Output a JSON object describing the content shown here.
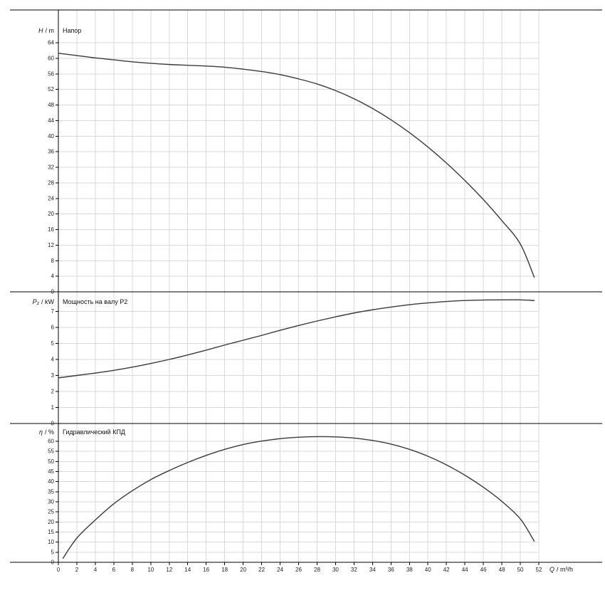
{
  "colors": {
    "background": "#ffffff",
    "grid": "#d9d9d9",
    "axis": "#000000",
    "curve": "#3a3a3a",
    "text": "#111111"
  },
  "layout_hints": {
    "grid": true,
    "stacked_panels": 3,
    "legend": "none"
  },
  "x_axis": {
    "var": "Q",
    "unit": "/ m³/h",
    "min": 0,
    "max": 52,
    "tick_step": 2,
    "ticks": [
      0,
      2,
      4,
      6,
      8,
      10,
      12,
      14,
      16,
      18,
      20,
      22,
      24,
      26,
      28,
      30,
      32,
      34,
      36,
      38,
      40,
      42,
      44,
      46,
      48,
      50,
      52
    ]
  },
  "chart_data": [
    {
      "type": "line",
      "title": "Напор",
      "y_axis": {
        "var": "H",
        "unit": "/ m",
        "min": 0,
        "max": 64,
        "tick_step": 4,
        "ticks": [
          0,
          4,
          8,
          12,
          16,
          20,
          24,
          28,
          32,
          36,
          40,
          44,
          48,
          52,
          56,
          60,
          64
        ]
      },
      "points": [
        [
          0,
          61.3
        ],
        [
          2,
          60.7
        ],
        [
          4,
          60.1
        ],
        [
          6,
          59.6
        ],
        [
          8,
          59.1
        ],
        [
          10,
          58.7
        ],
        [
          12,
          58.4
        ],
        [
          14,
          58.2
        ],
        [
          16,
          58.0
        ],
        [
          18,
          57.7
        ],
        [
          20,
          57.2
        ],
        [
          22,
          56.6
        ],
        [
          24,
          55.8
        ],
        [
          26,
          54.7
        ],
        [
          28,
          53.4
        ],
        [
          30,
          51.7
        ],
        [
          32,
          49.6
        ],
        [
          34,
          47.1
        ],
        [
          36,
          44.2
        ],
        [
          38,
          40.9
        ],
        [
          40,
          37.2
        ],
        [
          42,
          33.1
        ],
        [
          44,
          28.6
        ],
        [
          46,
          23.7
        ],
        [
          48,
          18.3
        ],
        [
          50,
          12.3
        ],
        [
          51.5,
          3.8
        ]
      ]
    },
    {
      "type": "line",
      "title": "Мощность на валу P2",
      "y_axis": {
        "var": "P₂",
        "unit": "/ kW",
        "min": 0,
        "max": 7,
        "tick_step": 1,
        "ticks": [
          0,
          1,
          2,
          3,
          4,
          5,
          6,
          7
        ]
      },
      "points": [
        [
          0,
          2.85
        ],
        [
          2,
          3.0
        ],
        [
          4,
          3.15
        ],
        [
          6,
          3.32
        ],
        [
          8,
          3.52
        ],
        [
          10,
          3.75
        ],
        [
          12,
          4.0
        ],
        [
          14,
          4.28
        ],
        [
          16,
          4.58
        ],
        [
          18,
          4.9
        ],
        [
          20,
          5.2
        ],
        [
          22,
          5.5
        ],
        [
          24,
          5.82
        ],
        [
          26,
          6.12
        ],
        [
          28,
          6.4
        ],
        [
          30,
          6.66
        ],
        [
          32,
          6.9
        ],
        [
          34,
          7.1
        ],
        [
          36,
          7.27
        ],
        [
          38,
          7.42
        ],
        [
          40,
          7.53
        ],
        [
          42,
          7.62
        ],
        [
          44,
          7.68
        ],
        [
          46,
          7.71
        ],
        [
          48,
          7.72
        ],
        [
          50,
          7.72
        ],
        [
          51.5,
          7.68
        ]
      ]
    },
    {
      "type": "line",
      "title": "Гидравлический КПД",
      "y_axis": {
        "var": "η",
        "unit": "/ %",
        "min": 0,
        "max": 60,
        "tick_step": 5,
        "ticks": [
          0,
          5,
          10,
          15,
          20,
          25,
          30,
          35,
          40,
          45,
          50,
          55,
          60
        ]
      },
      "points": [
        [
          0.5,
          2
        ],
        [
          2,
          12
        ],
        [
          4,
          21
        ],
        [
          6,
          29
        ],
        [
          8,
          35.5
        ],
        [
          10,
          41
        ],
        [
          12,
          45.5
        ],
        [
          14,
          49.5
        ],
        [
          16,
          53
        ],
        [
          18,
          56
        ],
        [
          20,
          58.4
        ],
        [
          22,
          60.1
        ],
        [
          24,
          61.3
        ],
        [
          26,
          62.0
        ],
        [
          28,
          62.3
        ],
        [
          30,
          62.2
        ],
        [
          32,
          61.6
        ],
        [
          34,
          60.4
        ],
        [
          36,
          58.6
        ],
        [
          38,
          56.0
        ],
        [
          40,
          52.6
        ],
        [
          42,
          48.3
        ],
        [
          44,
          43.2
        ],
        [
          46,
          37.2
        ],
        [
          48,
          30.2
        ],
        [
          50,
          21.5
        ],
        [
          51.5,
          10.5
        ]
      ]
    }
  ]
}
